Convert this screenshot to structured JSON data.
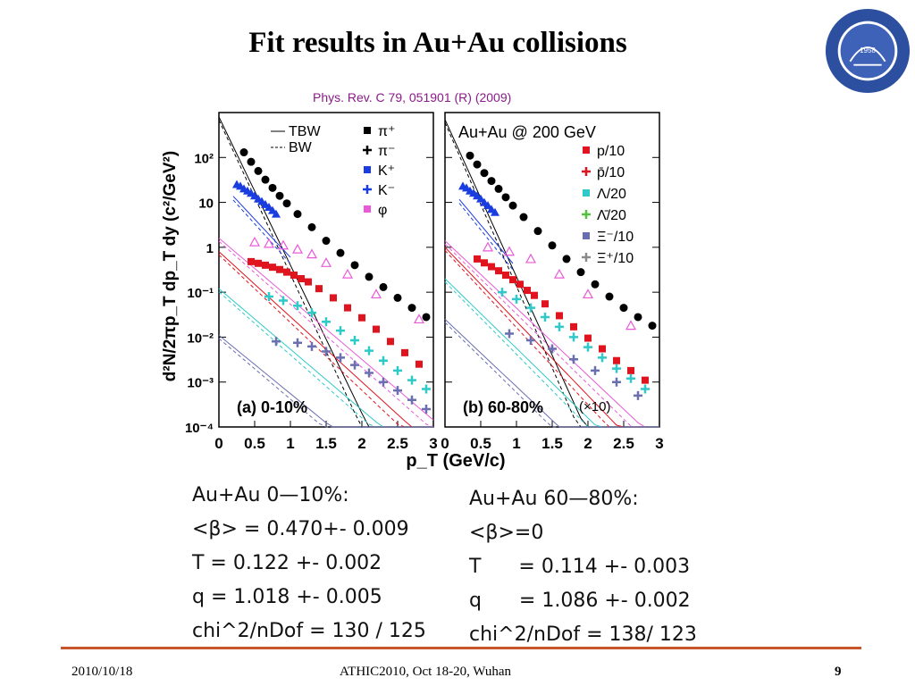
{
  "slide": {
    "title": "Fit results in Au+Au collisions",
    "reference": "Phys. Rev. C 79, 051901 (R) (2009)",
    "logo_text": "中国科学技术大学 University of Science and Technology of China",
    "logo_year": "1958",
    "footer_date": "2010/10/18",
    "footer_center": "ATHIC2010, Oct 18-20, Wuhan",
    "page_number": "9"
  },
  "results": {
    "left": {
      "heading": "Au+Au 0—10%:",
      "beta": "<β> = 0.470+- 0.009",
      "T": "T = 0.122 +- 0.002",
      "q": "q = 1.018 +- 0.005",
      "chi2": "chi^2/nDof = 130 / 125"
    },
    "right": {
      "heading": "Au+Au 60—80%:",
      "beta": "<β>=0",
      "T": "T      = 0.114 +- 0.003",
      "q": "q      = 1.086 +- 0.002",
      "chi2": "chi^2/nDof = 138/ 123"
    }
  },
  "colors": {
    "pi": "#000000",
    "K": "#1a3de0",
    "phi": "#e85ad8",
    "p": "#e0141e",
    "lambda": "#2ec9c9",
    "antilambda": "#52c23a",
    "xi": "#6a6fb0",
    "antixi": "#8a8a8a",
    "accent": "#c7562a"
  },
  "chart_data": {
    "type": "scatter",
    "xlabel": "p_T (GeV/c)",
    "ylabel": "d²N/2πp_T dp_T dy  (c²/GeV²)",
    "xlim": [
      0,
      3
    ],
    "ylim": [
      0.0001,
      1000
    ],
    "yscale": "log",
    "xticks": [
      "0",
      "0.5",
      "1",
      "1.5",
      "2",
      "2.5",
      "3"
    ],
    "yticks": [
      "10⁻⁴",
      "10⁻³",
      "10⁻²",
      "10⁻¹",
      "1",
      "10",
      "10²"
    ],
    "panels": [
      {
        "label": "(a) 0-10%",
        "legend": [
          {
            "name": "TBW",
            "line": "solid"
          },
          {
            "name": "BW",
            "line": "dashed"
          },
          {
            "name": "π⁺",
            "key": "pi"
          },
          {
            "name": "π⁻",
            "key": "pi"
          },
          {
            "name": "K⁺",
            "key": "K"
          },
          {
            "name": "K⁻",
            "key": "K"
          },
          {
            "name": "φ",
            "key": "phi"
          }
        ],
        "series": [
          {
            "name": "π⁺",
            "key": "pi",
            "marker": "circle",
            "x": [
              0.35,
              0.45,
              0.55,
              0.65,
              0.75,
              0.85,
              0.95,
              1.1,
              1.3,
              1.5,
              1.7,
              1.9,
              2.1,
              2.3,
              2.5,
              2.7,
              2.9
            ],
            "y": [
              130,
              80,
              50,
              32,
              21,
              14,
              9.5,
              5.5,
              2.8,
              1.4,
              0.75,
              0.4,
              0.22,
              0.13,
              0.075,
              0.045,
              0.028
            ]
          },
          {
            "name": "K⁺",
            "key": "K",
            "marker": "triangle",
            "x": [
              0.25,
              0.3,
              0.35,
              0.4,
              0.45,
              0.5,
              0.55,
              0.6,
              0.65,
              0.7,
              0.75,
              0.8
            ],
            "y": [
              25,
              23,
              20,
              18,
              16,
              14,
              12,
              10.5,
              9,
              7.8,
              6.6,
              5.5
            ]
          },
          {
            "name": "φ",
            "key": "phi",
            "marker": "open-triangle",
            "x": [
              0.5,
              0.7,
              0.9,
              1.1,
              1.3,
              1.5,
              1.8,
              2.2,
              2.8
            ],
            "y": [
              1.3,
              1.2,
              1.1,
              0.9,
              0.7,
              0.45,
              0.25,
              0.09,
              0.025
            ]
          },
          {
            "name": "p/10",
            "key": "p",
            "marker": "square",
            "x": [
              0.45,
              0.55,
              0.65,
              0.75,
              0.85,
              0.95,
              1.05,
              1.15,
              1.25,
              1.4,
              1.6,
              1.8,
              2.0,
              2.2,
              2.4,
              2.6,
              2.8
            ],
            "y": [
              0.48,
              0.44,
              0.4,
              0.36,
              0.32,
              0.28,
              0.24,
              0.2,
              0.17,
              0.12,
              0.075,
              0.045,
              0.027,
              0.015,
              0.008,
              0.0045,
              0.0025
            ]
          },
          {
            "name": "Λ/20",
            "key": "lambda",
            "marker": "star",
            "x": [
              0.7,
              0.9,
              1.1,
              1.3,
              1.5,
              1.7,
              1.9,
              2.1,
              2.3,
              2.5,
              2.7,
              2.9
            ],
            "y": [
              0.08,
              0.065,
              0.05,
              0.035,
              0.022,
              0.014,
              0.0085,
              0.005,
              0.003,
              0.0018,
              0.0011,
              0.0007
            ]
          },
          {
            "name": "Ξ⁻/10",
            "key": "xi",
            "marker": "star",
            "x": [
              0.8,
              1.1,
              1.3,
              1.5,
              1.7,
              1.9,
              2.1,
              2.3,
              2.5,
              2.7,
              2.9
            ],
            "y": [
              0.008,
              0.0075,
              0.0062,
              0.0048,
              0.0035,
              0.0024,
              0.0016,
              0.001,
              0.00065,
              0.0004,
              0.00025
            ]
          }
        ],
        "fits": [
          {
            "key": "pi",
            "y0": 800,
            "slope": -3.3
          },
          {
            "key": "K",
            "y0": 30,
            "slope": -1.7,
            "x_range": [
              0.2,
              1.0
            ]
          },
          {
            "key": "phi",
            "y0": 1.6,
            "slope": -1.35
          },
          {
            "key": "p",
            "y0": 0.8,
            "slope": -1.45
          },
          {
            "key": "lambda",
            "y0": 0.12,
            "slope": -1.35
          },
          {
            "key": "xi",
            "y0": 0.011,
            "slope": -1.3
          }
        ]
      },
      {
        "label": "(b) 60-80%",
        "label_note": "(×10)",
        "annotation": "Au+Au @ 200 GeV",
        "legend": [
          {
            "name": "p/10",
            "key": "p"
          },
          {
            "name": "p̄/10",
            "key": "p"
          },
          {
            "name": "Λ/20",
            "key": "lambda"
          },
          {
            "name": "Λ̄/20",
            "key": "antilambda"
          },
          {
            "name": "Ξ⁻/10",
            "key": "xi"
          },
          {
            "name": "Ξ⁺/10",
            "key": "antixi"
          }
        ],
        "series": [
          {
            "name": "π⁺",
            "key": "pi",
            "marker": "circle",
            "x": [
              0.35,
              0.45,
              0.55,
              0.65,
              0.75,
              0.85,
              0.95,
              1.1,
              1.3,
              1.5,
              1.7,
              1.9,
              2.1,
              2.3,
              2.5,
              2.7,
              2.9
            ],
            "y": [
              110,
              70,
              45,
              30,
              20,
              13,
              8.5,
              4.7,
              2.3,
              1.1,
              0.55,
              0.28,
              0.15,
              0.08,
              0.045,
              0.028,
              0.018
            ]
          },
          {
            "name": "K⁺",
            "key": "K",
            "marker": "triangle",
            "x": [
              0.25,
              0.3,
              0.35,
              0.4,
              0.45,
              0.5,
              0.55,
              0.6,
              0.65,
              0.7
            ],
            "y": [
              23,
              21,
              18,
              16,
              14,
              12,
              10,
              8.5,
              7,
              6
            ]
          },
          {
            "name": "φ",
            "key": "phi",
            "marker": "open-triangle",
            "x": [
              0.6,
              0.9,
              1.2,
              1.6,
              2.0,
              2.6
            ],
            "y": [
              1.0,
              0.8,
              0.55,
              0.25,
              0.09,
              0.018
            ]
          },
          {
            "name": "p/10",
            "key": "p",
            "marker": "square",
            "x": [
              0.45,
              0.55,
              0.65,
              0.75,
              0.85,
              0.95,
              1.05,
              1.15,
              1.25,
              1.4,
              1.6,
              1.8,
              2.0,
              2.2,
              2.4,
              2.6,
              2.8
            ],
            "y": [
              0.55,
              0.45,
              0.37,
              0.3,
              0.24,
              0.19,
              0.15,
              0.11,
              0.085,
              0.055,
              0.03,
              0.017,
              0.0095,
              0.0055,
              0.003,
              0.0018,
              0.0011
            ]
          },
          {
            "name": "Λ/20",
            "key": "lambda",
            "marker": "star",
            "x": [
              0.8,
              1.0,
              1.2,
              1.4,
              1.6,
              1.8,
              2.0,
              2.2,
              2.4,
              2.6,
              2.8
            ],
            "y": [
              0.1,
              0.07,
              0.045,
              0.028,
              0.017,
              0.01,
              0.006,
              0.0035,
              0.002,
              0.0012,
              0.0007
            ]
          },
          {
            "name": "Ξ⁻/10",
            "key": "xi",
            "marker": "star",
            "x": [
              0.9,
              1.2,
              1.5,
              1.8,
              2.1,
              2.4,
              2.7
            ],
            "y": [
              0.012,
              0.0085,
              0.0055,
              0.0032,
              0.0018,
              0.001,
              0.0005
            ]
          }
        ],
        "fits": [
          {
            "key": "pi",
            "y0": 700,
            "slope": -3.5
          },
          {
            "key": "K",
            "y0": 28,
            "slope": -1.9,
            "x_range": [
              0.2,
              0.95
            ]
          },
          {
            "key": "phi",
            "y0": 1.4,
            "slope": -1.5
          },
          {
            "key": "p",
            "y0": 1.0,
            "slope": -1.65
          },
          {
            "key": "lambda",
            "y0": 0.2,
            "slope": -1.55
          },
          {
            "key": "xi",
            "y0": 0.025,
            "slope": -1.5
          }
        ]
      }
    ]
  }
}
